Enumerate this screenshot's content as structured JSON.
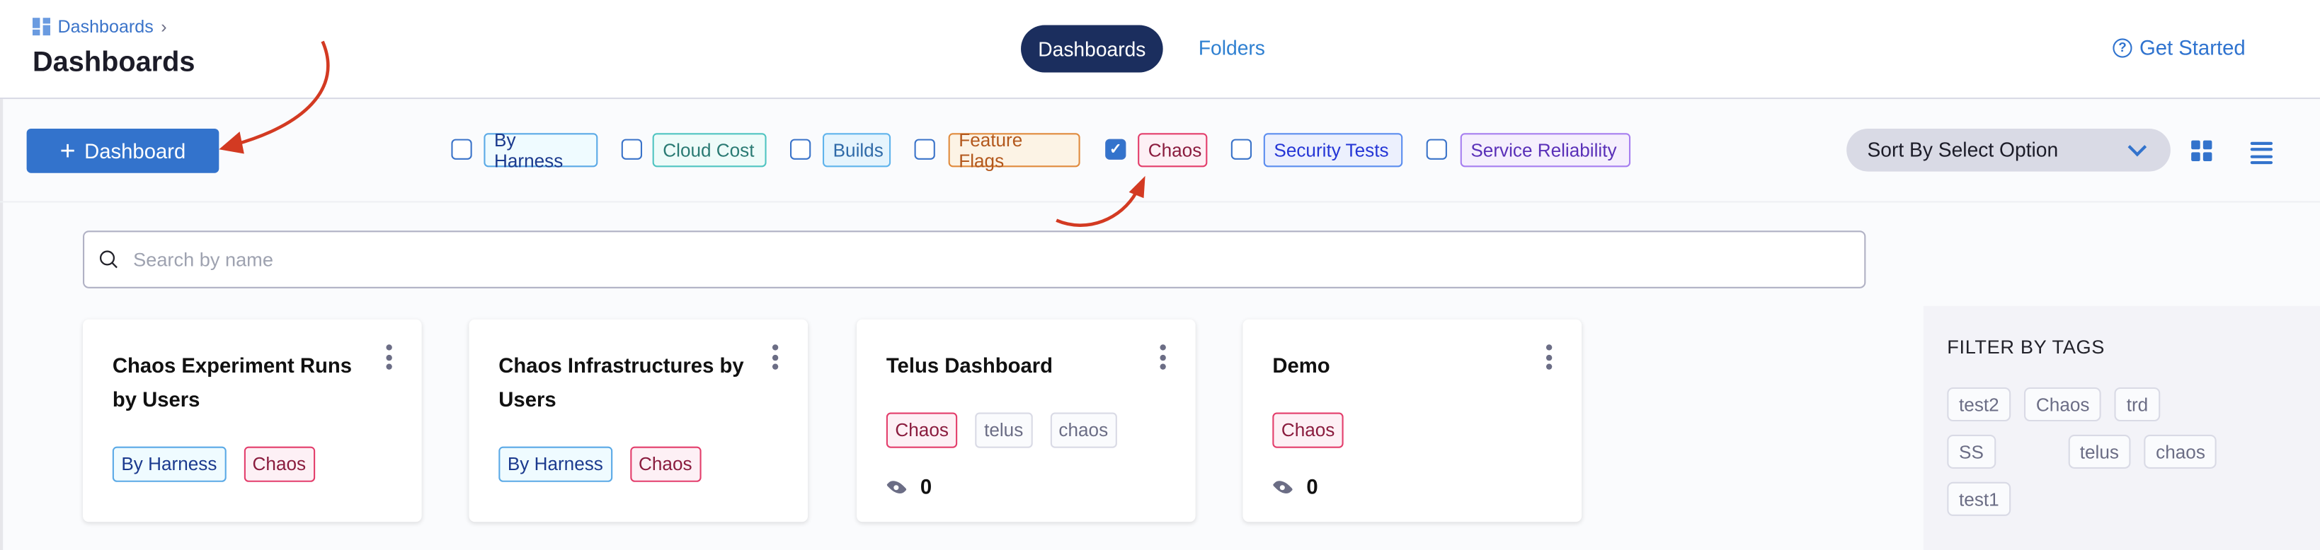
{
  "header": {
    "breadcrumb": "Dashboards",
    "title": "Dashboards",
    "tabs": [
      {
        "label": "Dashboards",
        "active": true
      },
      {
        "label": "Folders",
        "active": false
      }
    ],
    "get_started": "Get Started"
  },
  "toolbar": {
    "new_dashboard": "Dashboard",
    "filters": [
      {
        "label": "By Harness",
        "checked": false
      },
      {
        "label": "Cloud Cost",
        "checked": false
      },
      {
        "label": "Builds",
        "checked": false
      },
      {
        "label": "Feature Flags",
        "checked": false
      },
      {
        "label": "Chaos",
        "checked": true
      },
      {
        "label": "Security Tests",
        "checked": false
      },
      {
        "label": "Service Reliability",
        "checked": false
      }
    ],
    "sort": "Sort By Select Option",
    "view_mode": "grid"
  },
  "search": {
    "placeholder": "Search by name",
    "value": ""
  },
  "cards": [
    {
      "title": "Chaos Experiment Runs by Users",
      "tags": [
        "By Harness",
        "Chaos"
      ]
    },
    {
      "title": "Chaos Infrastructures by Users",
      "tags": [
        "By Harness",
        "Chaos"
      ]
    },
    {
      "title": "Telus Dashboard",
      "tags": [
        "Chaos",
        "telus",
        "chaos"
      ],
      "views": "0"
    },
    {
      "title": "Demo",
      "tags": [
        "Chaos"
      ],
      "views": "0"
    }
  ],
  "tag_filter": {
    "title": "FILTER BY TAGS",
    "tags": [
      "test2",
      "Chaos",
      "trd",
      "SS",
      "telus",
      "chaos",
      "test1"
    ]
  },
  "colors": {
    "primary": "#3373cc",
    "tab_active": "#1b2e5e",
    "annotation_arrow": "#d33a22"
  }
}
